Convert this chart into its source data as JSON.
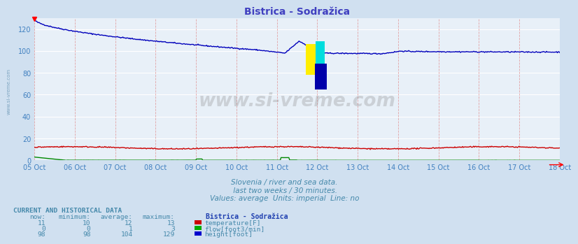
{
  "title": "Bistrica - Sodražica",
  "bg_color": "#d0e0f0",
  "plot_bg_color": "#e8f0f8",
  "grid_color_h": "#ffffff",
  "grid_color_v": "#e09090",
  "title_color": "#4040c0",
  "axis_color": "#4080c0",
  "text_color": "#4488aa",
  "xlabel_dates": [
    "05 Oct",
    "06 Oct",
    "07 Oct",
    "08 Oct",
    "09 Oct",
    "10 Oct",
    "11 Oct",
    "12 Oct",
    "13 Oct",
    "14 Oct",
    "15 Oct",
    "16 Oct",
    "17 Oct",
    "18 Oct"
  ],
  "ylabel_values": [
    0,
    20,
    40,
    60,
    80,
    100,
    120
  ],
  "ylim": [
    0,
    130
  ],
  "subtitle1": "Slovenia / river and sea data.",
  "subtitle2": " last two weeks / 30 minutes.",
  "subtitle3": "Values: average  Units: imperial  Line: no",
  "watermark": "www.si-vreme.com",
  "table_header": "CURRENT AND HISTORICAL DATA",
  "col_headers": [
    "now:",
    "minimum:",
    "average:",
    "maximum:",
    "Bistrica - Sodražica"
  ],
  "rows": [
    {
      "now": "11",
      "min": "10",
      "avg": "12",
      "max": "13",
      "label": "temperature[F]",
      "color": "#cc0000"
    },
    {
      "now": "0",
      "min": "0",
      "avg": "1",
      "max": "3",
      "label": "flow[foot3/min]",
      "color": "#00aa00"
    },
    {
      "now": "98",
      "min": "98",
      "avg": "104",
      "max": "129",
      "label": "height[foot]",
      "color": "#0000cc"
    }
  ]
}
